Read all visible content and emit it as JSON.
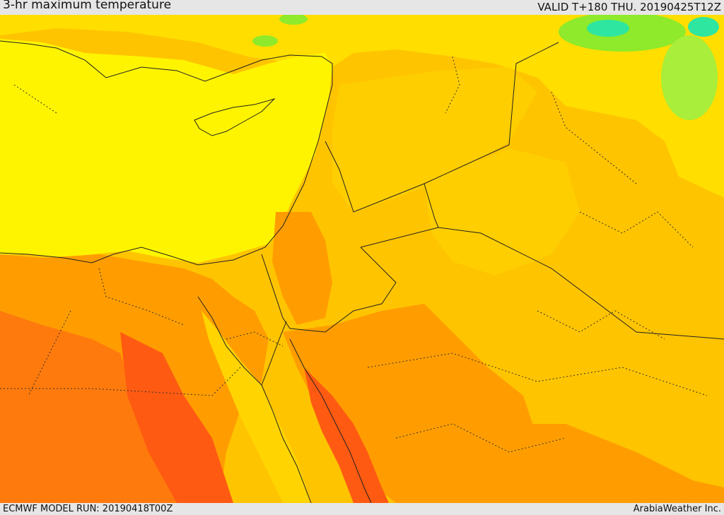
{
  "header": {
    "title": "3-hr maximum temperature",
    "valid": "VALID T+180 THU. 20190425T12Z"
  },
  "footer": {
    "model_run": "ECMWF MODEL RUN: 20190418T00Z",
    "brand": "ArabiaWeather Inc."
  },
  "colors": {
    "sea_yellow": "#fff400",
    "warm_orange": "#ffc400",
    "light_orange": "#ffd400",
    "mid_orange": "#ff9d00",
    "dark_orange": "#ff7a0c",
    "hot_red": "#ff5a12",
    "green": "#8eea2a",
    "cyan": "#2ee6a0"
  }
}
